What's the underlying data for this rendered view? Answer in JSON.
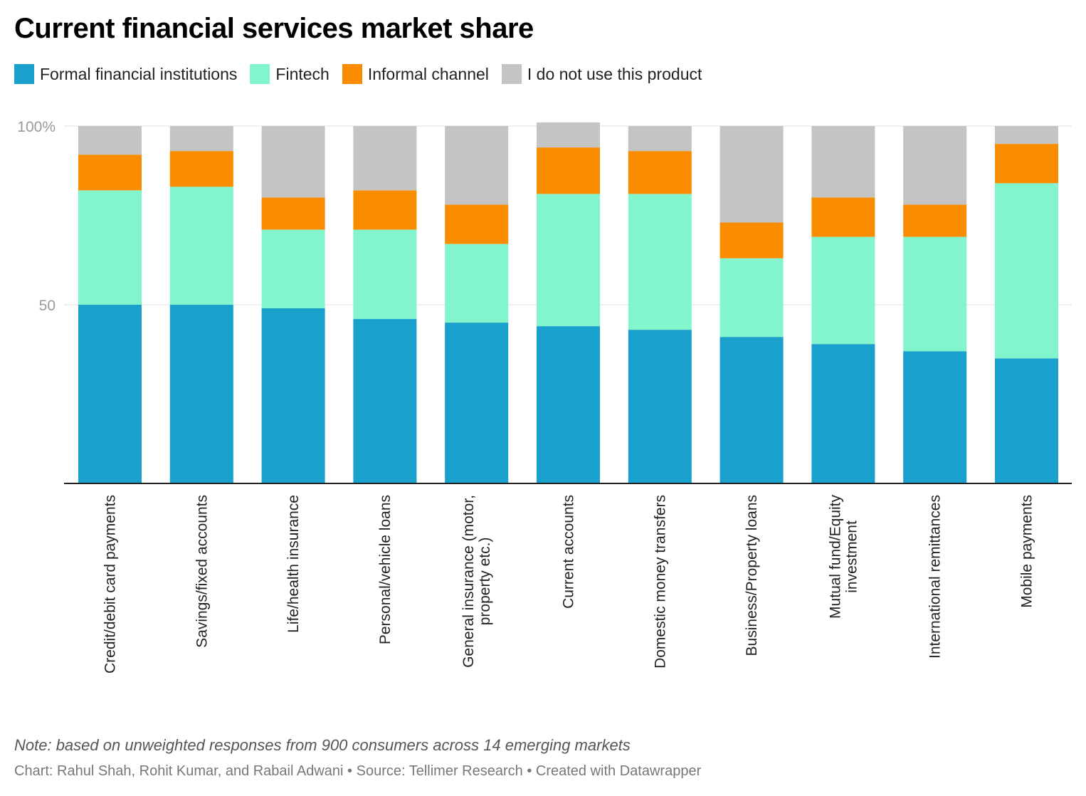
{
  "title": "Current financial services market share",
  "legend": {
    "items": [
      {
        "label": "Formal financial institutions",
        "color": "#1aa0cc"
      },
      {
        "label": "Fintech",
        "color": "#83f5cd"
      },
      {
        "label": "Informal channel",
        "color": "#fa8c00"
      },
      {
        "label": "I do not use this product",
        "color": "#c4c4c4"
      }
    ]
  },
  "note": "Note: based on unweighted responses from 900 consumers across 14 emerging markets",
  "credit": "Chart: Rahul Shah, Rohit Kumar, and Rabail Adwani • Source: Tellimer Research • Created with Datawrapper",
  "chart_data": {
    "type": "bar",
    "stacked": true,
    "categories": [
      "Credit/debit card payments",
      "Savings/fixed accounts",
      "Life/health insurance",
      "Personal/vehicle loans",
      "General insurance (motor, property etc.)",
      "Current accounts",
      "Domestic money transfers",
      "Business/Property loans",
      "Mutual fund/Equity investment",
      "International remittances",
      "Mobile payments"
    ],
    "series": [
      {
        "name": "Formal financial institutions",
        "color": "#1aa0cc",
        "values": [
          50,
          50,
          49,
          46,
          45,
          44,
          43,
          41,
          39,
          37,
          35
        ]
      },
      {
        "name": "Fintech",
        "color": "#83f5cd",
        "values": [
          32,
          33,
          22,
          25,
          22,
          37,
          38,
          22,
          30,
          32,
          49
        ]
      },
      {
        "name": "Informal channel",
        "color": "#fa8c00",
        "values": [
          10,
          10,
          9,
          11,
          11,
          13,
          12,
          10,
          11,
          9,
          11
        ]
      },
      {
        "name": "I do not use this product",
        "color": "#c4c4c4",
        "values": [
          8,
          7,
          20,
          18,
          22,
          7,
          7,
          27,
          20,
          22,
          5
        ]
      }
    ],
    "y_ticks": [
      {
        "value": 100,
        "label": "100%"
      },
      {
        "value": 50,
        "label": "50"
      }
    ],
    "ylim": [
      0,
      100
    ],
    "grid": true,
    "legend_position": "top-left"
  }
}
